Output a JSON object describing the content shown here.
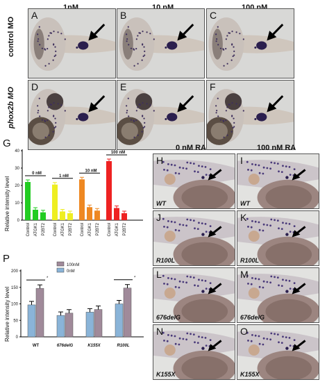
{
  "top_grid": {
    "col_headers": [
      "1nM",
      "10 nM",
      "100 nM"
    ],
    "row_labels": [
      "control MO",
      "phox2b MO"
    ],
    "panel_letters": [
      [
        "A",
        "B",
        "C"
      ],
      [
        "D",
        "E",
        "F"
      ]
    ]
  },
  "bottom_grid": {
    "col_headers": [
      "0 nM RA",
      "100 nM RA"
    ],
    "panel_letters": [
      [
        "H",
        "I"
      ],
      [
        "J",
        "K"
      ],
      [
        "L",
        "M"
      ],
      [
        "N",
        "O"
      ]
    ],
    "genotypes": [
      [
        "WT",
        "WT"
      ],
      [
        "R100L",
        "R100L"
      ],
      [
        "676delG",
        "676delG"
      ],
      [
        "K155X",
        "K155X"
      ]
    ]
  },
  "panel_G_letter": "G",
  "panel_P_letter": "P",
  "chart_G": {
    "type": "bar",
    "ylabel": "Relative intensity level",
    "y_ticks": [
      "0",
      "10",
      "20",
      "30",
      "40"
    ],
    "ylim": [
      0,
      40
    ],
    "groups": [
      {
        "label": "0 nM",
        "color": "#22cc22",
        "categories": [
          "Control",
          "ATGK1",
          "P2BT2"
        ],
        "values": [
          22,
          6,
          4.5
        ]
      },
      {
        "label": "1 nM",
        "color": "#eeee22",
        "categories": [
          "Control",
          "ATGK1",
          "P2BT2"
        ],
        "values": [
          20.5,
          5,
          4
        ]
      },
      {
        "label": "10 nM",
        "color": "#ee8822",
        "categories": [
          "Control",
          "ATGK1",
          "P2BT2"
        ],
        "values": [
          23.5,
          7.5,
          5.5
        ]
      },
      {
        "label": "100 nM",
        "color": "#ee2222",
        "categories": [
          "Control",
          "ATGK1",
          "P2BT2"
        ],
        "values": [
          34,
          7,
          4
        ]
      }
    ]
  },
  "chart_P": {
    "type": "bar",
    "ylabel": "Relative intensity level",
    "y_ticks": [
      "0",
      "50",
      "100",
      "150",
      "200"
    ],
    "ylim": [
      0,
      200
    ],
    "categories": [
      "WT",
      "676delG",
      "K155X",
      "R100L"
    ],
    "series": [
      {
        "name": "0nM",
        "color": "#8ab4d8",
        "values": [
          97,
          65,
          75,
          100
        ]
      },
      {
        "name": "100nM",
        "color": "#a08a9a",
        "values": [
          147,
          72,
          83,
          148
        ]
      }
    ],
    "significance": "*"
  }
}
